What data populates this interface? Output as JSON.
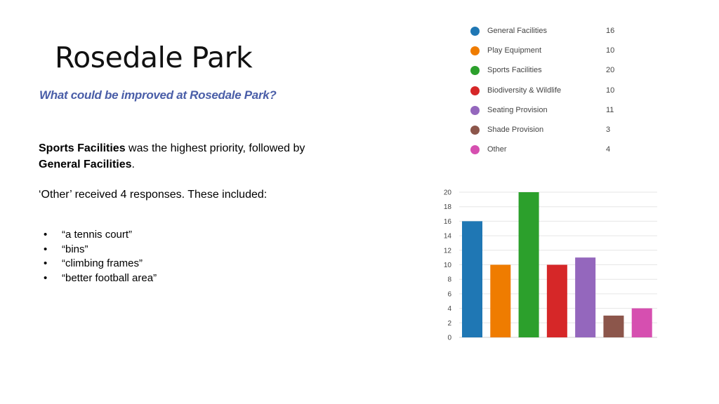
{
  "slide": {
    "title": "Rosedale Park",
    "question": "What could be improved at Rosedale Park?",
    "summary": {
      "highlight1": "Sports Facilities",
      "mid_text": " was the highest priority, followed by",
      "highlight2": "General Facilities",
      "end_text": "."
    },
    "other_line": "‘Other’ received 4 responses.  These included:",
    "responses": [
      "“a tennis court”",
      "“bins”",
      "“climbing frames”",
      "“better football area”"
    ],
    "bullet": "•"
  },
  "chart_data": {
    "type": "bar",
    "categories": [
      "General Facilities",
      "Play Equipment",
      "Sports Facilities",
      "Biodiversity & Wildlife",
      "Seating Provision",
      "Shade Provision",
      "Other"
    ],
    "values": [
      16,
      10,
      20,
      10,
      11,
      3,
      4
    ],
    "colors": [
      "#1f77b4",
      "#ef7c00",
      "#2ca02c",
      "#d62728",
      "#9467bd",
      "#8c564b",
      "#d64fb0"
    ],
    "ylim": [
      0,
      20
    ],
    "yticks": [
      0,
      2,
      4,
      6,
      8,
      10,
      12,
      14,
      16,
      18,
      20
    ],
    "grid": true,
    "legend_placement": "top-right"
  }
}
